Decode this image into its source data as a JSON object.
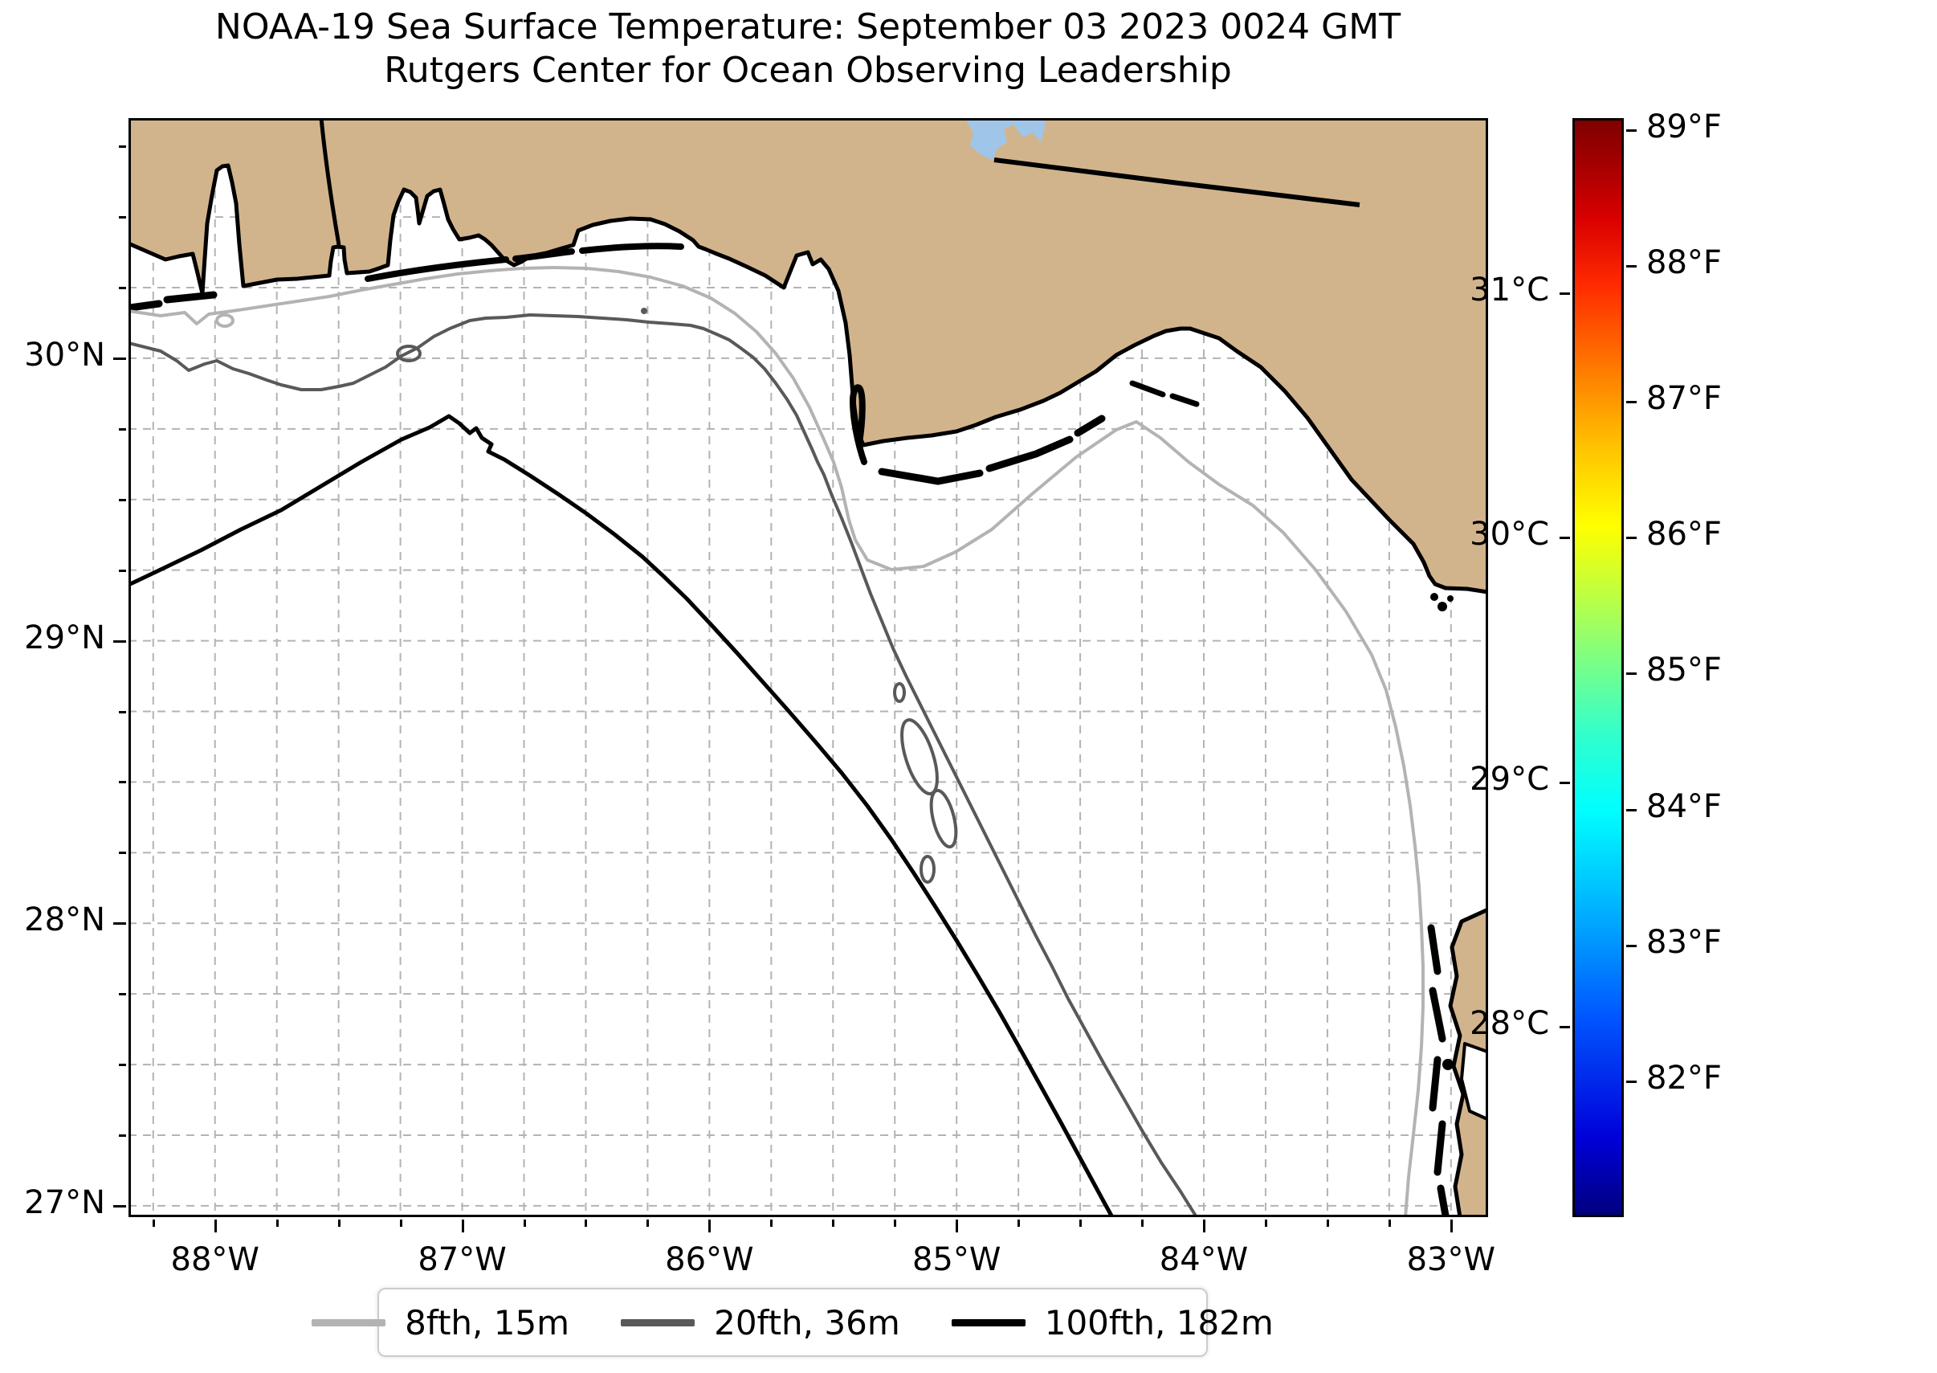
{
  "title": {
    "line1": "NOAA-19 Sea Surface Temperature: September 03 2023 0024 GMT",
    "line2": "Rutgers Center for Ocean Observing Leadership"
  },
  "axes": {
    "x_ticks": [
      {
        "label": "88°W",
        "lon": 88
      },
      {
        "label": "87°W",
        "lon": 87
      },
      {
        "label": "86°W",
        "lon": 86
      },
      {
        "label": "85°W",
        "lon": 85
      },
      {
        "label": "84°W",
        "lon": 84
      },
      {
        "label": "83°W",
        "lon": 83
      }
    ],
    "y_ticks": [
      {
        "label": "30°N",
        "lat": 30
      },
      {
        "label": "29°N",
        "lat": 29
      },
      {
        "label": "28°N",
        "lat": 28
      },
      {
        "label": "27°N",
        "lat": 27
      }
    ]
  },
  "colorbar": {
    "fahrenheit_ticks": [
      {
        "label": "89°F",
        "f": 89
      },
      {
        "label": "88°F",
        "f": 88
      },
      {
        "label": "87°F",
        "f": 87
      },
      {
        "label": "86°F",
        "f": 86
      },
      {
        "label": "85°F",
        "f": 85
      },
      {
        "label": "84°F",
        "f": 84
      },
      {
        "label": "83°F",
        "f": 83
      },
      {
        "label": "82°F",
        "f": 82
      }
    ],
    "celsius_ticks": [
      {
        "label": "31°C",
        "c": 31
      },
      {
        "label": "30°C",
        "c": 30
      },
      {
        "label": "29°C",
        "c": 29
      },
      {
        "label": "28°C",
        "c": 28
      }
    ]
  },
  "legend": {
    "items": [
      {
        "label": "8fth, 15m",
        "color": "#b3b3b3"
      },
      {
        "label": "20fth, 36m",
        "color": "#595959"
      },
      {
        "label": "100fth, 182m",
        "color": "#000000"
      }
    ]
  },
  "map": {
    "land_color": "#d2b48c",
    "ocean_color": "#ffffff",
    "lake_color": "#9fc5e8",
    "grid_color": "#b3b3b3",
    "contour_colors": {
      "c8fth": "#b3b3b3",
      "c20fth": "#595959",
      "c100fth": "#000000"
    }
  }
}
